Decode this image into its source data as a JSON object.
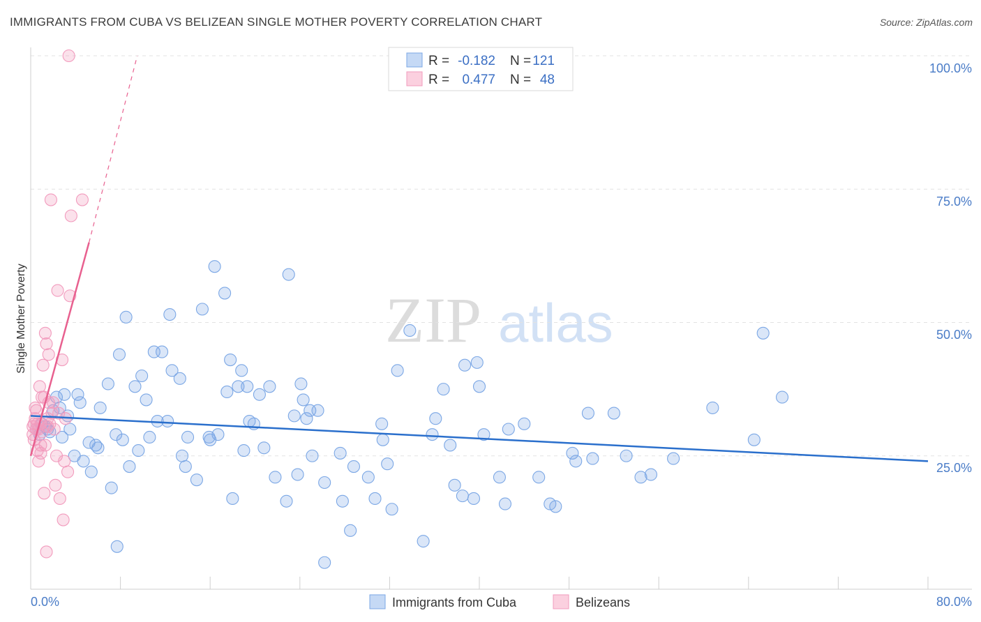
{
  "chart_data": {
    "type": "scatter",
    "title": "IMMIGRANTS FROM CUBA VS BELIZEAN SINGLE MOTHER POVERTY CORRELATION CHART",
    "source": "Source: ZipAtlas.com",
    "xlabel": "",
    "ylabel": "Single Mother Poverty",
    "xlim": [
      0,
      80
    ],
    "ylim": [
      0,
      100
    ],
    "x_tick_labels": [
      "0.0%",
      "80.0%"
    ],
    "y_ticks": [
      25,
      50,
      75,
      100
    ],
    "y_tick_labels": [
      "25.0%",
      "50.0%",
      "75.0%",
      "100.0%"
    ],
    "watermark": {
      "zip": "ZIP",
      "atlas": "atlas"
    },
    "legend_stats": [
      {
        "r_label": "R =",
        "r_value": "-0.182",
        "n_label": "N =",
        "n_value": "121",
        "color": "#6f9fe0"
      },
      {
        "r_label": "R =",
        "r_value": "0.477",
        "n_label": "N =",
        "n_value": "48",
        "color": "#f08fb0"
      }
    ],
    "series": [
      {
        "name": "Immigrants from Cuba",
        "color": "#7ba7e5",
        "trend": {
          "x0": 0,
          "y0": 32.5,
          "x1": 80,
          "y1": 24.0,
          "color": "#2a6fcc"
        },
        "points": [
          [
            0.5,
            30
          ],
          [
            0.8,
            29
          ],
          [
            1.0,
            31
          ],
          [
            1.3,
            30.5
          ],
          [
            1.5,
            30
          ],
          [
            1.7,
            29.5
          ],
          [
            2.0,
            33.5
          ],
          [
            2.3,
            36
          ],
          [
            2.6,
            34
          ],
          [
            2.8,
            28.5
          ],
          [
            3.0,
            36.5
          ],
          [
            3.3,
            32.5
          ],
          [
            3.5,
            30
          ],
          [
            3.9,
            25
          ],
          [
            4.2,
            36.5
          ],
          [
            4.4,
            35
          ],
          [
            4.7,
            24
          ],
          [
            5.2,
            27.5
          ],
          [
            5.4,
            22
          ],
          [
            5.8,
            27
          ],
          [
            6.0,
            26.5
          ],
          [
            6.2,
            34
          ],
          [
            6.9,
            38.5
          ],
          [
            7.2,
            19
          ],
          [
            7.6,
            29
          ],
          [
            7.7,
            8
          ],
          [
            7.9,
            44
          ],
          [
            8.2,
            28
          ],
          [
            8.5,
            51
          ],
          [
            8.8,
            23
          ],
          [
            9.3,
            38
          ],
          [
            9.6,
            26
          ],
          [
            9.9,
            40
          ],
          [
            10.3,
            35.5
          ],
          [
            10.6,
            28.5
          ],
          [
            11.0,
            44.5
          ],
          [
            11.3,
            31.5
          ],
          [
            11.7,
            44.5
          ],
          [
            12.2,
            31.5
          ],
          [
            12.4,
            51.5
          ],
          [
            12.6,
            41
          ],
          [
            13.3,
            39.5
          ],
          [
            13.5,
            25
          ],
          [
            13.8,
            23
          ],
          [
            14.0,
            28.5
          ],
          [
            14.8,
            20.5
          ],
          [
            15.3,
            52.5
          ],
          [
            15.9,
            28.5
          ],
          [
            16.0,
            28
          ],
          [
            16.4,
            60.5
          ],
          [
            16.7,
            29
          ],
          [
            17.3,
            55.5
          ],
          [
            17.5,
            37
          ],
          [
            17.8,
            43
          ],
          [
            18.0,
            17
          ],
          [
            18.5,
            38
          ],
          [
            18.8,
            41
          ],
          [
            19.0,
            26
          ],
          [
            19.3,
            38
          ],
          [
            19.5,
            31.5
          ],
          [
            19.9,
            31
          ],
          [
            20.4,
            36.5
          ],
          [
            20.8,
            26.5
          ],
          [
            21.3,
            38
          ],
          [
            21.8,
            21
          ],
          [
            22.8,
            16.5
          ],
          [
            23.0,
            59
          ],
          [
            23.5,
            32.5
          ],
          [
            23.8,
            21.5
          ],
          [
            24.1,
            38.5
          ],
          [
            24.3,
            35.5
          ],
          [
            24.6,
            32
          ],
          [
            24.9,
            33.5
          ],
          [
            25.1,
            25
          ],
          [
            25.6,
            33.5
          ],
          [
            26.2,
            20
          ],
          [
            26.2,
            5
          ],
          [
            27.6,
            25.5
          ],
          [
            27.8,
            16.5
          ],
          [
            28.5,
            11
          ],
          [
            28.8,
            23
          ],
          [
            30.1,
            21
          ],
          [
            30.7,
            17
          ],
          [
            31.3,
            31
          ],
          [
            31.4,
            28
          ],
          [
            31.8,
            23.5
          ],
          [
            32.2,
            15
          ],
          [
            32.7,
            41
          ],
          [
            33.8,
            48.5
          ],
          [
            35.0,
            9
          ],
          [
            35.8,
            29
          ],
          [
            36.1,
            32
          ],
          [
            36.8,
            37.5
          ],
          [
            37.4,
            27
          ],
          [
            37.8,
            19.5
          ],
          [
            38.5,
            17.5
          ],
          [
            38.7,
            42
          ],
          [
            39.5,
            17
          ],
          [
            39.8,
            42.5
          ],
          [
            40.0,
            38
          ],
          [
            40.4,
            29
          ],
          [
            41.8,
            21
          ],
          [
            42.3,
            16
          ],
          [
            42.6,
            30
          ],
          [
            44.0,
            31
          ],
          [
            45.3,
            21
          ],
          [
            46.3,
            16
          ],
          [
            46.8,
            15.5
          ],
          [
            48.3,
            25.5
          ],
          [
            48.6,
            24
          ],
          [
            49.7,
            33
          ],
          [
            50.1,
            24.5
          ],
          [
            52.0,
            33
          ],
          [
            53.1,
            25
          ],
          [
            54.4,
            21
          ],
          [
            55.3,
            21.5
          ],
          [
            57.3,
            24.5
          ],
          [
            60.8,
            34
          ],
          [
            64.5,
            28
          ],
          [
            65.3,
            48
          ],
          [
            67.0,
            36
          ]
        ]
      },
      {
        "name": "Belizeans",
        "color": "#f29bbd",
        "trend": {
          "x0": 0,
          "y0": 25,
          "x1": 5.2,
          "y1": 65,
          "color": "#e8608f"
        },
        "trend_ext": {
          "x0": 5.2,
          "y0": 65,
          "x1": 9.5,
          "y1": 100
        },
        "points": [
          [
            0.2,
            29
          ],
          [
            0.3,
            31
          ],
          [
            0.4,
            32
          ],
          [
            0.5,
            33.5
          ],
          [
            0.5,
            30
          ],
          [
            0.6,
            26
          ],
          [
            0.7,
            24
          ],
          [
            0.8,
            38
          ],
          [
            0.9,
            27
          ],
          [
            0.9,
            31
          ],
          [
            1.0,
            36
          ],
          [
            1.1,
            42
          ],
          [
            1.2,
            18
          ],
          [
            1.3,
            27
          ],
          [
            1.3,
            48
          ],
          [
            1.4,
            46
          ],
          [
            1.5,
            30.5
          ],
          [
            1.6,
            44
          ],
          [
            1.6,
            35
          ],
          [
            1.7,
            31
          ],
          [
            1.8,
            73
          ],
          [
            1.9,
            33
          ],
          [
            2.0,
            35
          ],
          [
            2.1,
            30
          ],
          [
            2.2,
            19.5
          ],
          [
            2.3,
            25
          ],
          [
            2.4,
            56
          ],
          [
            2.5,
            33
          ],
          [
            2.6,
            17
          ],
          [
            2.8,
            43
          ],
          [
            2.9,
            13
          ],
          [
            3.0,
            24
          ],
          [
            3.1,
            32
          ],
          [
            3.3,
            22
          ],
          [
            3.5,
            55
          ],
          [
            3.6,
            70
          ],
          [
            3.4,
            100
          ],
          [
            4.6,
            73
          ],
          [
            1.4,
            7
          ],
          [
            0.3,
            28
          ],
          [
            0.6,
            31
          ],
          [
            0.9,
            25.5
          ],
          [
            1.0,
            29.5
          ],
          [
            1.5,
            32
          ],
          [
            0.4,
            34
          ],
          [
            0.7,
            30
          ],
          [
            1.2,
            36
          ],
          [
            0.2,
            30.5
          ]
        ]
      }
    ]
  }
}
